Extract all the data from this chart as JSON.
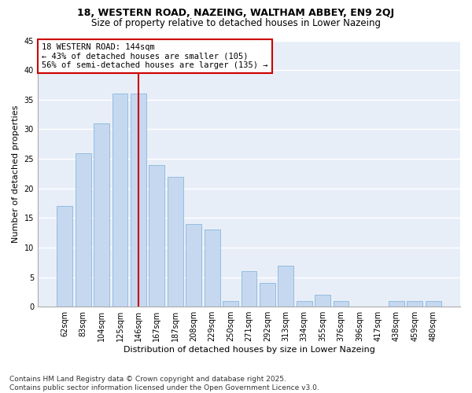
{
  "title": "18, WESTERN ROAD, NAZEING, WALTHAM ABBEY, EN9 2QJ",
  "subtitle": "Size of property relative to detached houses in Lower Nazeing",
  "xlabel": "Distribution of detached houses by size in Lower Nazeing",
  "ylabel": "Number of detached properties",
  "categories": [
    "62sqm",
    "83sqm",
    "104sqm",
    "125sqm",
    "146sqm",
    "167sqm",
    "187sqm",
    "208sqm",
    "229sqm",
    "250sqm",
    "271sqm",
    "292sqm",
    "313sqm",
    "334sqm",
    "355sqm",
    "376sqm",
    "396sqm",
    "417sqm",
    "438sqm",
    "459sqm",
    "480sqm"
  ],
  "values": [
    17,
    26,
    31,
    36,
    36,
    24,
    22,
    14,
    13,
    1,
    6,
    4,
    7,
    1,
    2,
    1,
    0,
    0,
    1,
    1,
    1
  ],
  "bar_color": "#c5d8f0",
  "bar_edge_color": "#7aafd4",
  "vline_color": "#cc0000",
  "vline_x": 4.0,
  "annotation_text": "18 WESTERN ROAD: 144sqm\n← 43% of detached houses are smaller (105)\n56% of semi-detached houses are larger (135) →",
  "annotation_box_color": "#ffffff",
  "annotation_box_edge": "#cc0000",
  "ylim": [
    0,
    45
  ],
  "yticks": [
    0,
    5,
    10,
    15,
    20,
    25,
    30,
    35,
    40,
    45
  ],
  "background_color": "#e8eef8",
  "fig_background_color": "#ffffff",
  "grid_color": "#ffffff",
  "footer": "Contains HM Land Registry data © Crown copyright and database right 2025.\nContains public sector information licensed under the Open Government Licence v3.0.",
  "title_fontsize": 9,
  "subtitle_fontsize": 8.5,
  "xlabel_fontsize": 8,
  "ylabel_fontsize": 8,
  "tick_fontsize": 7,
  "annotation_fontsize": 7.5,
  "footer_fontsize": 6.5
}
